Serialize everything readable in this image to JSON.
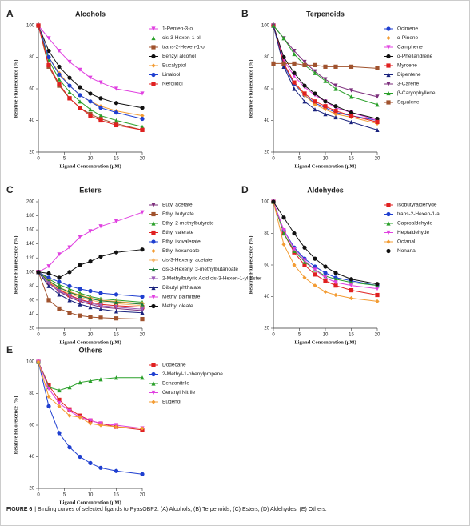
{
  "chart_data": [
    {
      "type": "line",
      "label": "A",
      "title": "Alcohols",
      "xlabel": "Ligand Concentration (μM)",
      "ylabel": "Relative Fluorescence (%)",
      "x": [
        0,
        2,
        4,
        6,
        8,
        10,
        12,
        15,
        20
      ],
      "xlim": [
        0,
        20
      ],
      "xticks": [
        0,
        5,
        10,
        15,
        20
      ],
      "ylim": [
        20,
        100
      ],
      "yticks": [
        20,
        40,
        60,
        80,
        100
      ],
      "series": [
        {
          "name": "1-Penten-3-ol",
          "color": "#e040e0",
          "marker": "triangle-down",
          "values": [
            100,
            92,
            84,
            77,
            72,
            67,
            64,
            60,
            57
          ]
        },
        {
          "name": "cis-3-Hexen-1-ol",
          "color": "#2aa02a",
          "marker": "triangle-up",
          "values": [
            100,
            78,
            66,
            58,
            52,
            47,
            43,
            40,
            36
          ]
        },
        {
          "name": "trans-2-Hexen-1-ol",
          "color": "#a0522d",
          "marker": "square",
          "values": [
            100,
            74,
            62,
            54,
            48,
            44,
            41,
            38,
            34
          ]
        },
        {
          "name": "Benzyl alcohol",
          "color": "#111111",
          "marker": "circle",
          "values": [
            100,
            84,
            74,
            67,
            61,
            57,
            54,
            51,
            48
          ]
        },
        {
          "name": "Eucalyptol",
          "color": "#f39c33",
          "marker": "diamond",
          "values": [
            100,
            80,
            70,
            62,
            56,
            52,
            49,
            46,
            43
          ]
        },
        {
          "name": "Linalool",
          "color": "#1f3fd0",
          "marker": "circle",
          "values": [
            100,
            80,
            69,
            62,
            56,
            52,
            48,
            45,
            41
          ]
        },
        {
          "name": "Nerolidol",
          "color": "#e02020",
          "marker": "square",
          "values": [
            100,
            75,
            63,
            54,
            48,
            43,
            40,
            37,
            34
          ]
        }
      ]
    },
    {
      "type": "line",
      "label": "B",
      "title": "Terpenoids",
      "xlabel": "Ligand Concentration (μM)",
      "ylabel": "Relative Fluorescence (%)",
      "x": [
        0,
        2,
        4,
        6,
        8,
        10,
        12,
        15,
        20
      ],
      "xlim": [
        0,
        20
      ],
      "xticks": [
        0,
        5,
        10,
        15,
        20
      ],
      "ylim": [
        20,
        100
      ],
      "yticks": [
        20,
        40,
        60,
        80,
        100
      ],
      "series": [
        {
          "name": "Ocimene",
          "color": "#1f3fd0",
          "marker": "circle",
          "values": [
            100,
            75,
            63,
            56,
            51,
            48,
            45,
            43,
            40
          ]
        },
        {
          "name": "α-Pinene",
          "color": "#f39c33",
          "marker": "diamond",
          "values": [
            100,
            76,
            64,
            56,
            50,
            47,
            44,
            42,
            38
          ]
        },
        {
          "name": "Camphene",
          "color": "#e040e0",
          "marker": "triangle-down",
          "values": [
            100,
            78,
            68,
            61,
            56,
            52,
            48,
            45,
            40
          ]
        },
        {
          "name": "α-Phellandrene",
          "color": "#111111",
          "marker": "circle",
          "values": [
            100,
            80,
            70,
            62,
            57,
            52,
            49,
            45,
            41
          ]
        },
        {
          "name": "Myrcene",
          "color": "#e02020",
          "marker": "square",
          "values": [
            100,
            76,
            64,
            57,
            52,
            49,
            46,
            43,
            39
          ]
        },
        {
          "name": "Dipentene",
          "color": "#1a237e",
          "marker": "triangle-up",
          "values": [
            100,
            74,
            60,
            52,
            47,
            44,
            42,
            39,
            34
          ]
        },
        {
          "name": "3-Carene",
          "color": "#7b2d7b",
          "marker": "triangle-down",
          "values": [
            100,
            92,
            84,
            77,
            71,
            66,
            62,
            59,
            55
          ]
        },
        {
          "name": "β-Caryophyllene",
          "color": "#2aa02a",
          "marker": "triangle-up",
          "values": [
            100,
            92,
            82,
            75,
            70,
            65,
            60,
            55,
            50
          ]
        },
        {
          "name": "Squalene",
          "color": "#a0522d",
          "marker": "square",
          "values": [
            76,
            76,
            76,
            75,
            75,
            74,
            74,
            74,
            73
          ]
        }
      ]
    },
    {
      "type": "line",
      "label": "C",
      "title": "Esters",
      "xlabel": "Ligand Concentration (μM)",
      "ylabel": "Relative Fluorescence (%)",
      "x": [
        0,
        2,
        4,
        6,
        8,
        10,
        12,
        15,
        20
      ],
      "xlim": [
        0,
        20
      ],
      "xticks": [
        0,
        5,
        10,
        15,
        20
      ],
      "ylim": [
        20,
        200
      ],
      "yticks": [
        20,
        40,
        60,
        80,
        100,
        120,
        140,
        160,
        180,
        200
      ],
      "series": [
        {
          "name": "Butyl acetate",
          "color": "#7b2d7b",
          "marker": "triangle-down",
          "values": [
            100,
            84,
            72,
            64,
            58,
            54,
            50,
            48,
            45
          ]
        },
        {
          "name": "Ethyl butyrate",
          "color": "#a0522d",
          "marker": "square",
          "values": [
            100,
            60,
            48,
            42,
            38,
            36,
            35,
            34,
            33
          ]
        },
        {
          "name": "Ethyl 2-methylbutyrate",
          "color": "#2aa02a",
          "marker": "triangle-up",
          "values": [
            100,
            90,
            82,
            76,
            70,
            65,
            62,
            60,
            57
          ]
        },
        {
          "name": "Ethyl valerate",
          "color": "#e02020",
          "marker": "square",
          "values": [
            100,
            85,
            75,
            67,
            61,
            57,
            54,
            52,
            50
          ]
        },
        {
          "name": "Ethyl isovalerate",
          "color": "#1f3fd0",
          "marker": "circle",
          "values": [
            100,
            92,
            86,
            80,
            76,
            73,
            70,
            68,
            65
          ]
        },
        {
          "name": "Ethyl hexanoate",
          "color": "#f39c33",
          "marker": "diamond",
          "values": [
            100,
            88,
            78,
            72,
            67,
            63,
            60,
            58,
            55
          ]
        },
        {
          "name": "cis-3-Hexenyl acetate",
          "color": "#f5b76b",
          "marker": "diamond",
          "values": [
            100,
            86,
            76,
            69,
            64,
            60,
            57,
            55,
            52
          ]
        },
        {
          "name": "cis-3-Hexenyl 3-methylbutanoate",
          "color": "#1e7a3a",
          "marker": "triangle-up",
          "values": [
            100,
            87,
            78,
            71,
            66,
            62,
            59,
            57,
            54
          ]
        },
        {
          "name": "2-Methylbutyric Acid cis-3-Hexen-1-yl Ester",
          "color": "#9b59b6",
          "marker": "triangle-down",
          "values": [
            100,
            84,
            73,
            66,
            60,
            56,
            52,
            50,
            47
          ]
        },
        {
          "name": "Dibutyl phthalate",
          "color": "#1a237e",
          "marker": "triangle-up",
          "values": [
            100,
            80,
            68,
            60,
            54,
            50,
            47,
            44,
            42
          ]
        },
        {
          "name": "Methyl palmitate",
          "color": "#e040e0",
          "marker": "triangle-down",
          "values": [
            100,
            108,
            125,
            135,
            150,
            158,
            165,
            172,
            185
          ]
        },
        {
          "name": "Methyl oleate",
          "color": "#111111",
          "marker": "circle",
          "values": [
            100,
            98,
            92,
            100,
            110,
            115,
            122,
            128,
            132
          ]
        }
      ]
    },
    {
      "type": "line",
      "label": "D",
      "title": "Aldehydes",
      "xlabel": "Ligand Concentration (μM)",
      "ylabel": "Relative Fluorescence (%)",
      "x": [
        0,
        2,
        4,
        6,
        8,
        10,
        12,
        15,
        20
      ],
      "xlim": [
        0,
        20
      ],
      "xticks": [
        0,
        5,
        10,
        15,
        20
      ],
      "ylim": [
        20,
        100
      ],
      "yticks": [
        20,
        40,
        60,
        80,
        100
      ],
      "series": [
        {
          "name": "Isobutyraldehyde",
          "color": "#e02020",
          "marker": "square",
          "values": [
            100,
            80,
            68,
            60,
            54,
            50,
            47,
            44,
            41
          ]
        },
        {
          "name": "trans-2-Hexen-1-al",
          "color": "#1f3fd0",
          "marker": "circle",
          "values": [
            100,
            82,
            71,
            64,
            59,
            55,
            52,
            50,
            47
          ]
        },
        {
          "name": "Caproaldehyde",
          "color": "#2aa02a",
          "marker": "triangle-up",
          "values": [
            100,
            80,
            69,
            62,
            57,
            53,
            51,
            49,
            47
          ]
        },
        {
          "name": "Heptaldehyde",
          "color": "#e040e0",
          "marker": "triangle-down",
          "values": [
            100,
            82,
            70,
            63,
            57,
            52,
            49,
            47,
            45
          ]
        },
        {
          "name": "Octanal",
          "color": "#f39c33",
          "marker": "diamond",
          "values": [
            100,
            73,
            60,
            52,
            47,
            43,
            41,
            39,
            37
          ]
        },
        {
          "name": "Nonanal",
          "color": "#111111",
          "marker": "circle",
          "values": [
            100,
            90,
            80,
            71,
            64,
            59,
            55,
            51,
            48
          ]
        }
      ]
    },
    {
      "type": "line",
      "label": "E",
      "title": "Others",
      "xlabel": "Ligand Concentration (μM)",
      "ylabel": "Relative Fluorescence (%)",
      "x": [
        0,
        2,
        4,
        6,
        8,
        10,
        12,
        15,
        20
      ],
      "xlim": [
        0,
        20
      ],
      "xticks": [
        0,
        5,
        10,
        15,
        20
      ],
      "ylim": [
        20,
        100
      ],
      "yticks": [
        20,
        40,
        60,
        80,
        100
      ],
      "series": [
        {
          "name": "Dodecane",
          "color": "#e02020",
          "marker": "square",
          "values": [
            100,
            85,
            76,
            70,
            66,
            63,
            61,
            59,
            57
          ]
        },
        {
          "name": "2-Methyl-1-phenylpropene",
          "color": "#1f3fd0",
          "marker": "circle",
          "values": [
            100,
            72,
            55,
            46,
            40,
            36,
            33,
            31,
            29
          ]
        },
        {
          "name": "Benzonitrile",
          "color": "#2aa02a",
          "marker": "triangle-up",
          "values": [
            100,
            84,
            82,
            84,
            87,
            88,
            89,
            90,
            90
          ]
        },
        {
          "name": "Geranyl Nitrile",
          "color": "#e040e0",
          "marker": "triangle-down",
          "values": [
            100,
            83,
            74,
            69,
            65,
            63,
            61,
            60,
            58
          ]
        },
        {
          "name": "Eugenol",
          "color": "#f39c33",
          "marker": "diamond",
          "values": [
            100,
            78,
            72,
            66,
            65,
            61,
            60,
            59,
            58
          ]
        }
      ]
    }
  ],
  "figure_label": "FIGURE 6",
  "caption": "| Binding curves of selected ligands to PyasOBP2. (A) Alcohols; (B) Terpenoids; (C) Esters; (D) Aldehydes; (E) Others."
}
